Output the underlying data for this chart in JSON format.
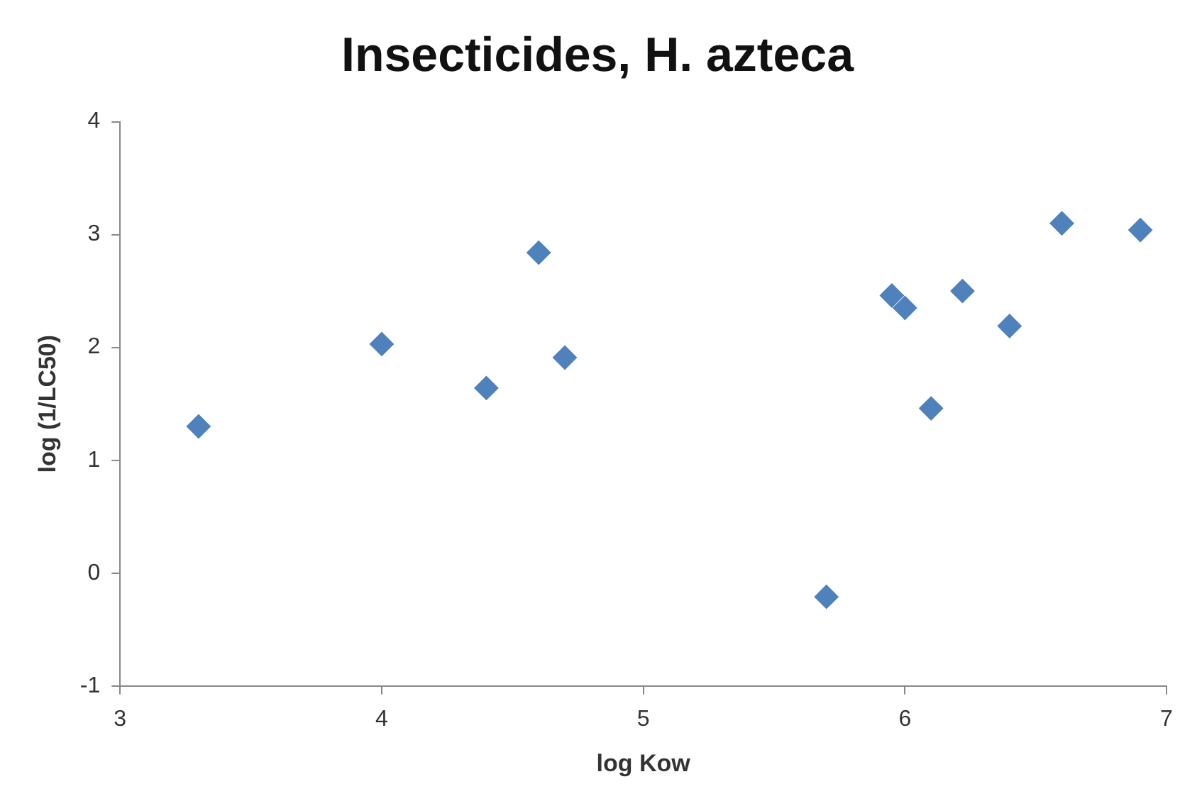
{
  "chart_data": {
    "type": "scatter",
    "title": "Insecticides, H. azteca",
    "xlabel": "log Kow",
    "ylabel": "log (1/LC50)",
    "x": [
      3.3,
      4.0,
      4.4,
      4.6,
      4.7,
      5.7,
      5.95,
      6.0,
      6.1,
      6.22,
      6.4,
      6.6,
      6.9
    ],
    "values": [
      1.3,
      2.03,
      1.64,
      2.84,
      1.91,
      -0.21,
      2.46,
      2.35,
      1.46,
      2.5,
      2.19,
      3.1,
      3.04
    ],
    "color": "#4f81bd",
    "marker": "diamond",
    "xlim": [
      3,
      7
    ],
    "xticks": [
      3,
      4,
      5,
      6,
      7
    ],
    "ylim": [
      -1,
      4
    ],
    "yticks": [
      -1,
      0,
      1,
      2,
      3,
      4
    ],
    "grid": false,
    "legend": false
  }
}
